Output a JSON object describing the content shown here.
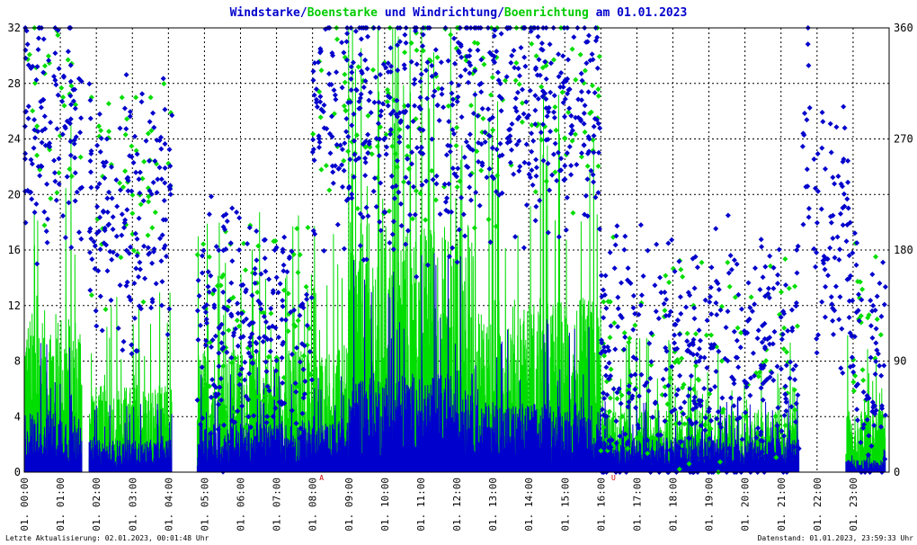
{
  "chart_data": {
    "type": "scatter",
    "title_parts": [
      {
        "text": "Windstarke",
        "color": "#0000cc"
      },
      {
        "text": "/",
        "color": "#0000cc"
      },
      {
        "text": "Boenstarke",
        "color": "#00cc00"
      },
      {
        "text": " und ",
        "color": "#0000cc"
      },
      {
        "text": "Windrichtung",
        "color": "#0000cc"
      },
      {
        "text": "/",
        "color": "#0000cc"
      },
      {
        "text": "Boenrichtung",
        "color": "#00cc00"
      },
      {
        "text": " am 01.01.2023",
        "color": "#0000cc"
      }
    ],
    "y_left": {
      "range": [
        0,
        32
      ],
      "ticks": [
        "0",
        "4",
        "8",
        "12",
        "16",
        "20",
        "24",
        "28",
        "32"
      ]
    },
    "y_right": {
      "range": [
        0,
        360
      ],
      "ticks": [
        "0",
        "90",
        "180",
        "270",
        "360"
      ]
    },
    "x": {
      "range_hours": [
        0,
        24
      ],
      "ticks": [
        "01. 00:00",
        "01. 01:00",
        "01. 02:00",
        "01. 03:00",
        "01. 04:00",
        "01. 05:00",
        "01. 06:00",
        "01. 07:00",
        "01. 08:00",
        "01. 09:00",
        "01. 10:00",
        "01. 11:00",
        "01. 12:00",
        "01. 13:00",
        "01. 14:00",
        "01. 15:00",
        "01. 16:00",
        "01. 17:00",
        "01. 18:00",
        "01. 19:00",
        "01. 20:00",
        "01. 21:00",
        "01. 22:00",
        "01. 23:00"
      ]
    },
    "grid": true,
    "markers": [
      {
        "label": "A",
        "hour": 8.25
      },
      {
        "label": "U",
        "hour": 16.35
      }
    ],
    "colors": {
      "wind": "#0000cc",
      "gust": "#00dd00",
      "grid": "#000000",
      "marker": "#cc0000"
    },
    "series": [
      {
        "name": "Windstarke",
        "kind": "speed",
        "segments": [
          {
            "from": 0.0,
            "to": 1.6,
            "mean": 2.5
          },
          {
            "from": 1.8,
            "to": 4.1,
            "mean": 1.3
          },
          {
            "from": 4.8,
            "to": 9.0,
            "mean": 2.0
          },
          {
            "from": 9.0,
            "to": 12.5,
            "mean": 4.0
          },
          {
            "from": 12.5,
            "to": 16.0,
            "mean": 2.8
          },
          {
            "from": 16.0,
            "to": 21.5,
            "mean": 1.4
          },
          {
            "from": 22.8,
            "to": 23.9,
            "mean": 0.5
          }
        ]
      },
      {
        "name": "Boenstarke",
        "kind": "gust",
        "segments": [
          {
            "from": 0.0,
            "to": 1.6,
            "mean": 6.5
          },
          {
            "from": 1.8,
            "to": 4.1,
            "mean": 3.5
          },
          {
            "from": 4.8,
            "to": 9.0,
            "mean": 5.0
          },
          {
            "from": 9.0,
            "to": 12.5,
            "mean": 10.0
          },
          {
            "from": 12.5,
            "to": 16.0,
            "mean": 7.0
          },
          {
            "from": 16.0,
            "to": 21.5,
            "mean": 2.5
          },
          {
            "from": 22.8,
            "to": 23.9,
            "mean": 2.5
          }
        ]
      },
      {
        "name": "Windrichtung",
        "kind": "direction",
        "segments": [
          {
            "from": 0.0,
            "to": 1.6,
            "deg": 280
          },
          {
            "from": 1.8,
            "to": 4.1,
            "deg": 210
          },
          {
            "from": 4.8,
            "to": 8.0,
            "deg": 110
          },
          {
            "from": 8.0,
            "to": 12.5,
            "deg": 285
          },
          {
            "from": 12.5,
            "to": 16.0,
            "deg": 290
          },
          {
            "from": 16.0,
            "to": 21.5,
            "deg": 85
          },
          {
            "from": 21.6,
            "to": 21.8,
            "deg": 270
          },
          {
            "from": 21.9,
            "to": 22.9,
            "deg": 202
          },
          {
            "from": 22.9,
            "to": 23.9,
            "deg": 100
          }
        ]
      },
      {
        "name": "Boenrichtung",
        "kind": "direction_gust",
        "segments": [
          {
            "from": 0.0,
            "to": 1.6,
            "deg": 285
          },
          {
            "from": 1.8,
            "to": 4.1,
            "deg": 230
          },
          {
            "from": 4.8,
            "to": 8.0,
            "deg": 120
          },
          {
            "from": 8.0,
            "to": 12.5,
            "deg": 290
          },
          {
            "from": 12.5,
            "to": 16.0,
            "deg": 295
          },
          {
            "from": 16.0,
            "to": 21.5,
            "deg": 90
          },
          {
            "from": 22.9,
            "to": 23.9,
            "deg": 100
          }
        ]
      }
    ]
  },
  "footer": {
    "left": "Letzte Aktualisierung: 02.01.2023, 00:01:48 Uhr",
    "right": "Datenstand: 01.01.2023, 23:59:33 Uhr"
  }
}
